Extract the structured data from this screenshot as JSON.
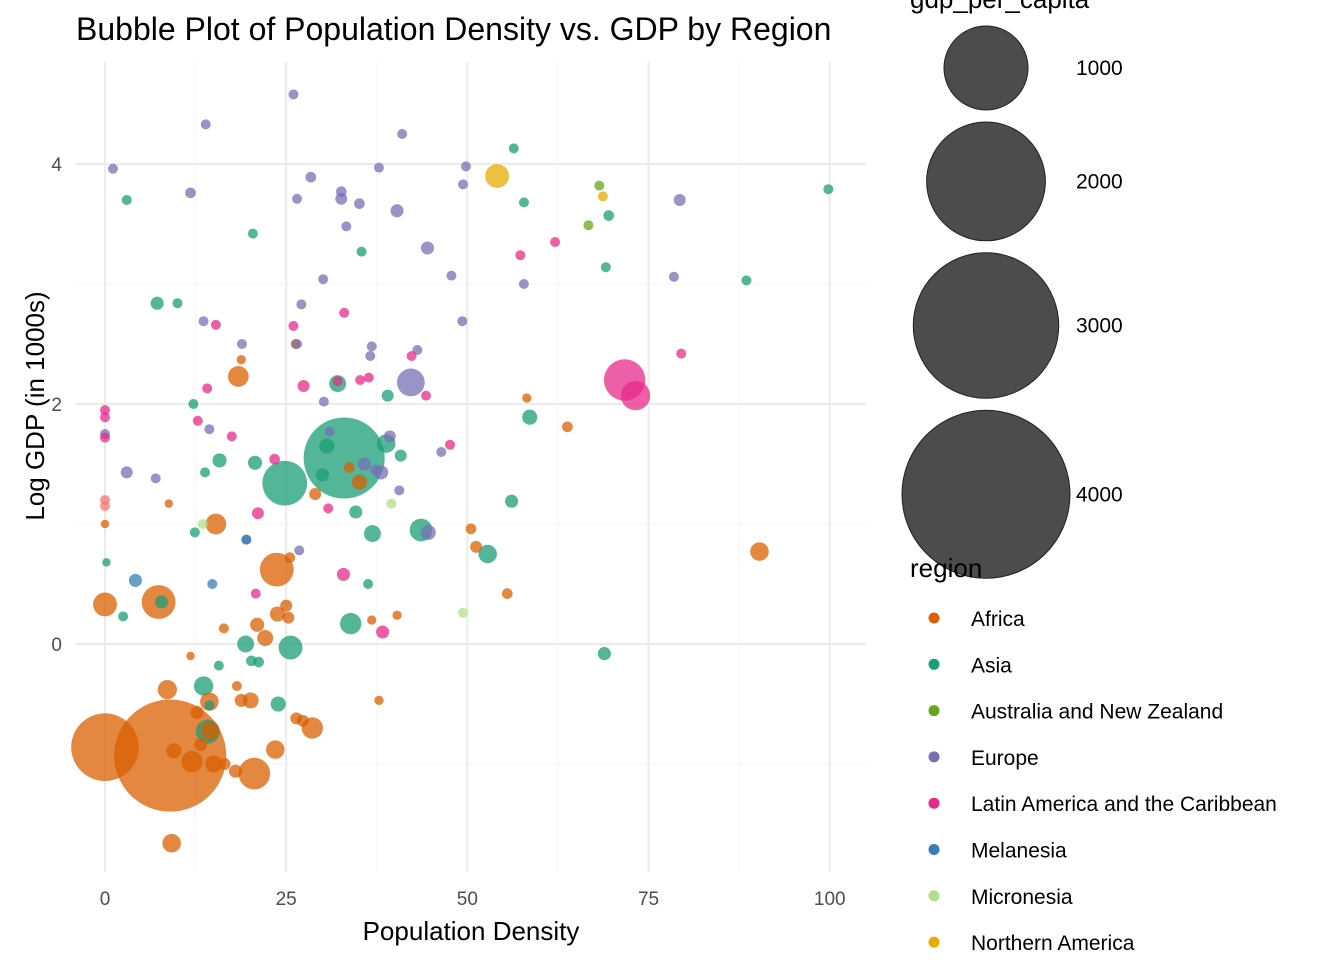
{
  "chart_data": {
    "type": "scatter",
    "title": "Bubble Plot of Population Density vs. GDP by Region",
    "xlabel": "Population Density",
    "ylabel": "Log GDP (in 1000s)",
    "xlim": [
      -4,
      105
    ],
    "ylim": [
      -1.9,
      4.85
    ],
    "xticks": [
      0,
      25,
      50,
      75,
      100
    ],
    "yticks": [
      0,
      2,
      4
    ],
    "grid": true,
    "size_legend": {
      "title": "gdp_per_capita",
      "values": [
        1000,
        2000,
        3000,
        4000
      ]
    },
    "color_legend": {
      "title": "region",
      "entries": [
        {
          "name": "Africa",
          "color": "#D95F02"
        },
        {
          "name": "Asia",
          "color": "#1B9E77"
        },
        {
          "name": "Australia and New Zealand",
          "color": "#66A61E"
        },
        {
          "name": "Europe",
          "color": "#7570B3"
        },
        {
          "name": "Latin America and the Caribbean",
          "color": "#E7298A"
        },
        {
          "name": "Melanesia",
          "color": "#377EB8"
        },
        {
          "name": "Micronesia",
          "color": "#B2DF8A"
        },
        {
          "name": "Northern America",
          "color": "#E6AB02"
        }
      ]
    },
    "series": [
      {
        "name": "Africa",
        "color": "#D95F02",
        "points": [
          [
            0,
            1.0,
            25
          ],
          [
            0,
            0.33,
            200
          ],
          [
            7.4,
            0.35,
            400
          ],
          [
            8.8,
            1.17,
            25
          ],
          [
            11.8,
            -0.1,
            25
          ],
          [
            12.7,
            -0.57,
            60
          ],
          [
            13.2,
            -0.84,
            60
          ],
          [
            14.4,
            -0.48,
            120
          ],
          [
            14.5,
            -0.72,
            120
          ],
          [
            15.3,
            1.0,
            150
          ],
          [
            16.4,
            0.13,
            35
          ],
          [
            18.4,
            2.23,
            150
          ],
          [
            18.8,
            2.37,
            30
          ],
          [
            18.2,
            -0.35,
            35
          ],
          [
            18.8,
            -0.47,
            60
          ],
          [
            20.1,
            -0.47,
            90
          ],
          [
            21.0,
            0.16,
            70
          ],
          [
            22.1,
            0.05,
            90
          ],
          [
            23.7,
            0.62,
            400
          ],
          [
            23.5,
            -0.88,
            120
          ],
          [
            23.8,
            0.25,
            80
          ],
          [
            25.0,
            0.32,
            50
          ],
          [
            25.3,
            0.22,
            50
          ],
          [
            25.5,
            0.72,
            40
          ],
          [
            26.3,
            2.5,
            35
          ],
          [
            26.4,
            -0.62,
            50
          ],
          [
            27.3,
            -0.64,
            50
          ],
          [
            28.6,
            -0.7,
            160
          ],
          [
            29.0,
            1.25,
            50
          ],
          [
            33.7,
            1.47,
            40
          ],
          [
            35.1,
            1.35,
            80
          ],
          [
            36.8,
            0.2,
            30
          ],
          [
            37.8,
            -0.47,
            30
          ],
          [
            40.3,
            0.24,
            30
          ],
          [
            50.5,
            0.96,
            40
          ],
          [
            51.2,
            0.81,
            50
          ],
          [
            55.5,
            0.42,
            40
          ],
          [
            58.2,
            2.05,
            30
          ],
          [
            63.8,
            1.81,
            40
          ],
          [
            90.3,
            0.77,
            120
          ],
          [
            18.0,
            -1.06,
            60
          ],
          [
            20.6,
            -1.08,
            350
          ],
          [
            15.0,
            -1.0,
            100
          ],
          [
            12.0,
            -0.98,
            160
          ],
          [
            9.2,
            -1.66,
            120
          ],
          [
            8.6,
            -0.38,
            130
          ],
          [
            9.5,
            -0.89,
            80
          ],
          [
            0,
            -0.86,
            1600
          ],
          [
            9.0,
            -0.93,
            4400
          ],
          [
            16.5,
            -1.0,
            50
          ]
        ]
      },
      {
        "name": "Asia",
        "color": "#1B9E77",
        "points": [
          [
            0.2,
            0.68,
            25
          ],
          [
            2.5,
            0.23,
            35
          ],
          [
            3.0,
            3.7,
            35
          ],
          [
            7.2,
            2.84,
            60
          ],
          [
            10.0,
            2.84,
            35
          ],
          [
            12.2,
            2.0,
            35
          ],
          [
            12.4,
            0.93,
            35
          ],
          [
            13.8,
            1.43,
            35
          ],
          [
            13.6,
            -0.35,
            130
          ],
          [
            14.4,
            -0.51,
            35
          ],
          [
            15.8,
            1.53,
            70
          ],
          [
            15.7,
            -0.18,
            35
          ],
          [
            19.4,
            0.0,
            100
          ],
          [
            20.2,
            -0.14,
            40
          ],
          [
            20.4,
            3.42,
            35
          ],
          [
            20.7,
            1.51,
            70
          ],
          [
            21.2,
            -0.15,
            40
          ],
          [
            23.9,
            -0.5,
            80
          ],
          [
            24.8,
            1.34,
            700
          ],
          [
            25.6,
            -0.03,
            200
          ],
          [
            30.0,
            1.41,
            60
          ],
          [
            30.6,
            1.65,
            80
          ],
          [
            32.1,
            2.17,
            100
          ],
          [
            33.0,
            1.55,
            2300
          ],
          [
            33.9,
            0.17,
            160
          ],
          [
            34.6,
            1.1,
            60
          ],
          [
            35.4,
            3.27,
            35
          ],
          [
            36.3,
            0.5,
            35
          ],
          [
            36.9,
            0.92,
            100
          ],
          [
            39.0,
            2.07,
            50
          ],
          [
            38.8,
            1.67,
            120
          ],
          [
            40.8,
            1.57,
            50
          ],
          [
            43.6,
            0.95,
            180
          ],
          [
            52.8,
            0.75,
            120
          ],
          [
            56.1,
            1.19,
            60
          ],
          [
            56.4,
            4.13,
            35
          ],
          [
            57.8,
            3.68,
            35
          ],
          [
            58.6,
            1.89,
            80
          ],
          [
            68.9,
            -0.08,
            60
          ],
          [
            69.1,
            3.14,
            35
          ],
          [
            69.5,
            3.57,
            40
          ],
          [
            88.5,
            3.03,
            35
          ],
          [
            99.8,
            3.79,
            35
          ],
          [
            14.2,
            -0.73,
            200
          ],
          [
            7.8,
            0.35,
            60
          ]
        ]
      },
      {
        "name": "Australia and New Zealand",
        "color": "#66A61E",
        "points": [
          [
            66.7,
            3.49,
            35
          ],
          [
            68.2,
            3.82,
            35
          ]
        ]
      },
      {
        "name": "Europe",
        "color": "#7570B3",
        "points": [
          [
            0,
            1.75,
            35
          ],
          [
            1.1,
            3.96,
            35
          ],
          [
            3.0,
            1.43,
            50
          ],
          [
            7.0,
            1.38,
            35
          ],
          [
            11.8,
            3.76,
            40
          ],
          [
            13.9,
            4.33,
            35
          ],
          [
            13.6,
            2.69,
            35
          ],
          [
            14.4,
            1.79,
            35
          ],
          [
            18.9,
            2.5,
            35
          ],
          [
            19.5,
            0.87,
            35
          ],
          [
            26.0,
            4.58,
            35
          ],
          [
            26.5,
            3.71,
            35
          ],
          [
            26.5,
            2.5,
            35
          ],
          [
            27.1,
            2.83,
            35
          ],
          [
            28.4,
            3.89,
            40
          ],
          [
            30.1,
            3.04,
            35
          ],
          [
            30.2,
            2.02,
            35
          ],
          [
            31.0,
            1.77,
            35
          ],
          [
            32.6,
            3.77,
            40
          ],
          [
            32.6,
            3.71,
            50
          ],
          [
            33.3,
            3.48,
            35
          ],
          [
            35.1,
            3.67,
            40
          ],
          [
            35.8,
            1.5,
            60
          ],
          [
            36.6,
            2.4,
            35
          ],
          [
            36.8,
            2.48,
            35
          ],
          [
            37.3,
            1.45,
            40
          ],
          [
            37.8,
            3.97,
            35
          ],
          [
            38.1,
            1.43,
            70
          ],
          [
            39.3,
            1.73,
            50
          ],
          [
            40.3,
            3.61,
            60
          ],
          [
            40.6,
            1.28,
            35
          ],
          [
            41.0,
            4.25,
            35
          ],
          [
            42.2,
            2.18,
            270
          ],
          [
            43.1,
            2.45,
            35
          ],
          [
            44.5,
            3.3,
            60
          ],
          [
            44.6,
            0.93,
            80
          ],
          [
            46.4,
            1.6,
            35
          ],
          [
            47.8,
            3.07,
            35
          ],
          [
            49.4,
            3.83,
            35
          ],
          [
            49.3,
            2.69,
            35
          ],
          [
            49.8,
            3.98,
            35
          ],
          [
            57.8,
            3.0,
            35
          ],
          [
            78.5,
            3.06,
            35
          ],
          [
            79.3,
            3.7,
            50
          ],
          [
            26.8,
            0.78,
            35
          ]
        ]
      },
      {
        "name": "Latin America and the Caribbean",
        "color": "#E7298A",
        "points": [
          [
            0,
            1.95,
            35
          ],
          [
            0,
            1.89,
            35
          ],
          [
            0,
            1.72,
            35
          ],
          [
            12.8,
            1.86,
            35
          ],
          [
            14.1,
            2.13,
            35
          ],
          [
            15.3,
            2.66,
            35
          ],
          [
            17.5,
            1.73,
            35
          ],
          [
            20.8,
            0.42,
            35
          ],
          [
            21.1,
            1.09,
            50
          ],
          [
            23.4,
            1.54,
            40
          ],
          [
            26.0,
            2.65,
            35
          ],
          [
            27.4,
            2.15,
            50
          ],
          [
            30.8,
            1.13,
            35
          ],
          [
            32.1,
            2.19,
            35
          ],
          [
            32.9,
            0.58,
            60
          ],
          [
            33.0,
            2.76,
            35
          ],
          [
            35.2,
            2.2,
            35
          ],
          [
            36.4,
            2.22,
            35
          ],
          [
            38.3,
            0.1,
            60
          ],
          [
            42.3,
            2.4,
            35
          ],
          [
            44.3,
            2.07,
            35
          ],
          [
            47.6,
            1.66,
            35
          ],
          [
            57.3,
            3.24,
            35
          ],
          [
            62.1,
            3.35,
            35
          ],
          [
            71.7,
            2.2,
            600
          ],
          [
            73.2,
            2.07,
            300
          ],
          [
            79.5,
            2.42,
            35
          ]
        ]
      },
      {
        "name": "Melanesia",
        "color": "#377EB8",
        "points": [
          [
            4.2,
            0.53,
            60
          ],
          [
            14.8,
            0.5,
            35
          ],
          [
            19.5,
            0.87,
            35
          ]
        ]
      },
      {
        "name": "Micronesia",
        "color": "#B2DF8A",
        "points": [
          [
            13.5,
            1.0,
            35
          ],
          [
            39.5,
            1.17,
            35
          ],
          [
            49.4,
            0.26,
            35
          ]
        ]
      },
      {
        "name": "Northern America",
        "color": "#E6AB02",
        "points": [
          [
            54.1,
            3.9,
            200
          ],
          [
            68.7,
            3.73,
            35
          ]
        ]
      },
      {
        "name": "",
        "color": "#F8766D",
        "points": [
          [
            0,
            1.2,
            35
          ],
          [
            0,
            1.15,
            35
          ]
        ]
      }
    ]
  }
}
